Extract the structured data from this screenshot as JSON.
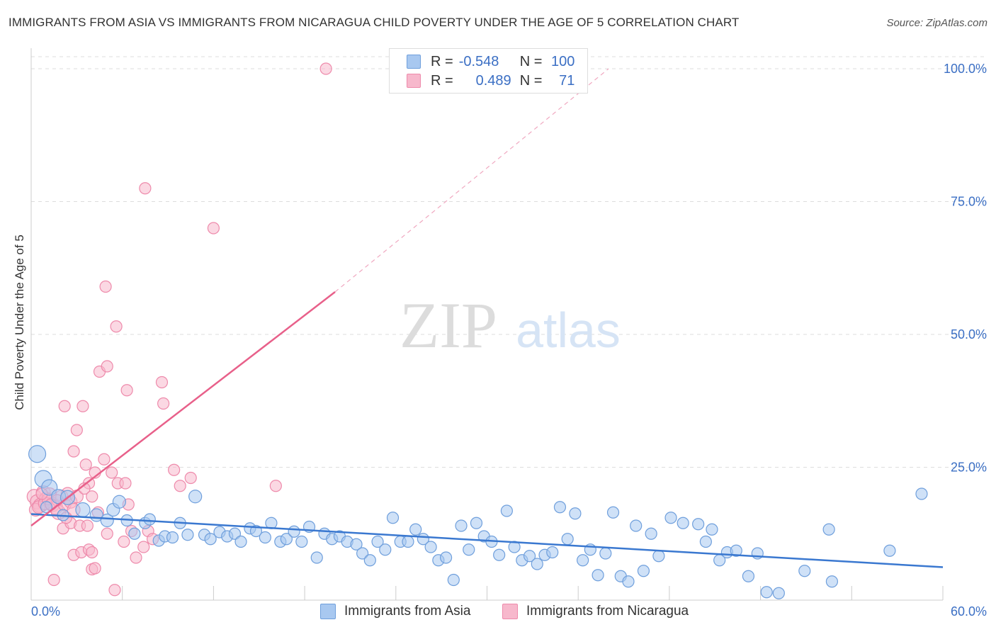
{
  "title": "IMMIGRANTS FROM ASIA VS IMMIGRANTS FROM NICARAGUA CHILD POVERTY UNDER THE AGE OF 5 CORRELATION CHART",
  "source": "Source: ZipAtlas.com",
  "watermark": {
    "zip": "ZIP",
    "atlas": "atlas"
  },
  "legend": {
    "asia": {
      "r_label": "R =",
      "r_value": "-0.548",
      "n_label": "N =",
      "n_value": "100"
    },
    "nicaragua": {
      "r_label": "R =",
      "r_value": "0.489",
      "n_label": "N =",
      "n_value": "71"
    }
  },
  "bottom_legend": {
    "asia": "Immigrants from Asia",
    "nicaragua": "Immigrants from Nicaragua"
  },
  "colors": {
    "asia_fill": "#a8c8f0",
    "asia_stroke": "#6f9fdc",
    "asia_line": "#3a78d0",
    "nic_fill": "#f7b8cc",
    "nic_stroke": "#ee8aab",
    "nic_line": "#e8608a",
    "axis_text": "#3b6fc4",
    "grid": "#dddddd"
  },
  "chart_data": {
    "type": "scatter",
    "title": "IMMIGRANTS FROM ASIA VS IMMIGRANTS FROM NICARAGUA CHILD POVERTY UNDER THE AGE OF 5 CORRELATION CHART",
    "xlabel": "",
    "ylabel": "Child Poverty Under the Age of 5",
    "xlim": [
      0,
      60
    ],
    "ylim": [
      0,
      100
    ],
    "x_tick_labels": [
      "0.0%",
      "60.0%"
    ],
    "y_tick_labels": [
      "100.0%",
      "75.0%",
      "50.0%",
      "25.0%"
    ],
    "y_ticks": [
      100,
      75,
      50,
      25
    ],
    "grid": true,
    "series": [
      {
        "name": "Immigrants from Asia",
        "R": -0.548,
        "N": 100,
        "trend": {
          "x": [
            0,
            60
          ],
          "y": [
            16.2,
            6.2
          ]
        },
        "points": [
          [
            0.4,
            27.5,
            12
          ],
          [
            0.8,
            22.8,
            12
          ],
          [
            1.2,
            21.2,
            11
          ],
          [
            1.8,
            19.5,
            10
          ],
          [
            2.4,
            19.3,
            10
          ],
          [
            3.4,
            17.0,
            10
          ],
          [
            4.3,
            16.0,
            9
          ],
          [
            5.0,
            15.0,
            9
          ],
          [
            5.4,
            17.0,
            9
          ],
          [
            5.8,
            18.5,
            9
          ],
          [
            6.3,
            15.0,
            8
          ],
          [
            6.8,
            12.5,
            8
          ],
          [
            7.5,
            14.5,
            8
          ],
          [
            7.8,
            15.2,
            8
          ],
          [
            8.4,
            11.2,
            8
          ],
          [
            8.8,
            12.0,
            8
          ],
          [
            9.3,
            11.8,
            8
          ],
          [
            9.8,
            14.5,
            8
          ],
          [
            10.3,
            12.3,
            8
          ],
          [
            10.8,
            19.5,
            9
          ],
          [
            11.4,
            12.3,
            8
          ],
          [
            11.8,
            11.5,
            8
          ],
          [
            12.4,
            12.8,
            8
          ],
          [
            12.9,
            12.0,
            8
          ],
          [
            13.4,
            12.5,
            8
          ],
          [
            13.8,
            11.0,
            8
          ],
          [
            14.4,
            13.5,
            8
          ],
          [
            14.8,
            13.0,
            8
          ],
          [
            15.4,
            11.8,
            8
          ],
          [
            15.8,
            14.5,
            8
          ],
          [
            16.4,
            11.0,
            8
          ],
          [
            16.8,
            11.5,
            8
          ],
          [
            17.3,
            12.9,
            8
          ],
          [
            17.8,
            11.0,
            8
          ],
          [
            18.3,
            13.8,
            8
          ],
          [
            18.8,
            8.0,
            8
          ],
          [
            19.3,
            12.5,
            8
          ],
          [
            19.8,
            11.5,
            8
          ],
          [
            20.3,
            12.0,
            8
          ],
          [
            20.8,
            11.0,
            8
          ],
          [
            21.4,
            10.5,
            8
          ],
          [
            21.8,
            8.8,
            8
          ],
          [
            22.3,
            7.5,
            8
          ],
          [
            22.8,
            11.0,
            8
          ],
          [
            23.3,
            9.5,
            8
          ],
          [
            23.8,
            15.5,
            8
          ],
          [
            24.3,
            11.0,
            8
          ],
          [
            24.8,
            11.0,
            8
          ],
          [
            25.3,
            13.3,
            8
          ],
          [
            25.8,
            11.5,
            8
          ],
          [
            26.3,
            10.0,
            8
          ],
          [
            26.8,
            7.5,
            8
          ],
          [
            27.3,
            8.0,
            8
          ],
          [
            27.8,
            3.8,
            8
          ],
          [
            28.3,
            14.0,
            8
          ],
          [
            28.8,
            9.5,
            8
          ],
          [
            29.3,
            14.5,
            8
          ],
          [
            29.8,
            12.0,
            8
          ],
          [
            30.3,
            11.0,
            8
          ],
          [
            30.8,
            8.5,
            8
          ],
          [
            31.3,
            16.8,
            8
          ],
          [
            31.8,
            10.0,
            8
          ],
          [
            32.3,
            7.5,
            8
          ],
          [
            32.8,
            8.3,
            8
          ],
          [
            33.3,
            6.8,
            8
          ],
          [
            33.8,
            8.5,
            8
          ],
          [
            34.3,
            9.0,
            8
          ],
          [
            34.8,
            17.5,
            8
          ],
          [
            35.3,
            11.5,
            8
          ],
          [
            35.8,
            16.3,
            8
          ],
          [
            36.3,
            7.5,
            8
          ],
          [
            36.8,
            9.5,
            8
          ],
          [
            37.3,
            4.7,
            8
          ],
          [
            37.8,
            8.8,
            8
          ],
          [
            38.3,
            16.5,
            8
          ],
          [
            38.8,
            4.5,
            8
          ],
          [
            39.3,
            3.5,
            8
          ],
          [
            39.8,
            14.0,
            8
          ],
          [
            40.3,
            5.5,
            8
          ],
          [
            40.8,
            12.5,
            8
          ],
          [
            41.3,
            8.3,
            8
          ],
          [
            42.1,
            15.5,
            8
          ],
          [
            42.9,
            14.5,
            8
          ],
          [
            43.9,
            14.3,
            8
          ],
          [
            44.4,
            11.0,
            8
          ],
          [
            44.8,
            13.3,
            8
          ],
          [
            45.3,
            7.5,
            8
          ],
          [
            45.8,
            9.0,
            8
          ],
          [
            46.4,
            9.3,
            8
          ],
          [
            47.2,
            4.5,
            8
          ],
          [
            47.8,
            8.8,
            8
          ],
          [
            48.4,
            1.5,
            8
          ],
          [
            49.2,
            1.3,
            8
          ],
          [
            50.9,
            5.5,
            8
          ],
          [
            52.5,
            13.3,
            8
          ],
          [
            52.7,
            3.5,
            8
          ],
          [
            56.5,
            9.3,
            8
          ],
          [
            58.6,
            20.0,
            8
          ],
          [
            1.0,
            17.5,
            8
          ],
          [
            2.1,
            16.0,
            8
          ]
        ]
      },
      {
        "name": "Immigrants from Nicaragua",
        "R": 0.489,
        "N": 71,
        "trend": {
          "x": [
            0,
            20
          ],
          "y": [
            14.0,
            58.0
          ]
        },
        "trend_extension": {
          "x": [
            20,
            38
          ],
          "y": [
            58.0,
            100.0
          ]
        },
        "points": [
          [
            0.2,
            19.5,
            10
          ],
          [
            0.4,
            18.5,
            10
          ],
          [
            0.6,
            17.8,
            10
          ],
          [
            0.8,
            20.2,
            10
          ],
          [
            1.0,
            19.0,
            10
          ],
          [
            1.2,
            19.8,
            10
          ],
          [
            1.4,
            18.0,
            10
          ],
          [
            1.6,
            17.5,
            10
          ],
          [
            1.8,
            16.5,
            10
          ],
          [
            2.0,
            19.5,
            9
          ],
          [
            2.2,
            18.0,
            9
          ],
          [
            0.3,
            17.0,
            9
          ],
          [
            0.5,
            17.5,
            9
          ],
          [
            0.9,
            18.2,
            9
          ],
          [
            2.4,
            20.0,
            9
          ],
          [
            2.6,
            18.5,
            9
          ],
          [
            2.8,
            17.0,
            9
          ],
          [
            3.0,
            19.5,
            9
          ],
          [
            1.5,
            3.8,
            8
          ],
          [
            2.2,
            36.5,
            8
          ],
          [
            2.8,
            28.0,
            8
          ],
          [
            3.0,
            32.0,
            8
          ],
          [
            3.4,
            36.5,
            8
          ],
          [
            3.6,
            25.5,
            8
          ],
          [
            3.8,
            22.0,
            8
          ],
          [
            4.2,
            24.0,
            8
          ],
          [
            4.5,
            43.0,
            8
          ],
          [
            5.0,
            44.0,
            8
          ],
          [
            4.9,
            59.0,
            8
          ],
          [
            5.6,
            51.5,
            8
          ],
          [
            6.3,
            39.5,
            8
          ],
          [
            7.5,
            77.5,
            8
          ],
          [
            8.6,
            41.0,
            8
          ],
          [
            8.7,
            37.0,
            8
          ],
          [
            9.4,
            24.5,
            8
          ],
          [
            10.5,
            23.0,
            8
          ],
          [
            12.0,
            70.0,
            8
          ],
          [
            16.1,
            21.5,
            8
          ],
          [
            19.4,
            100.0,
            8
          ],
          [
            4.8,
            26.5,
            8
          ],
          [
            5.3,
            24.0,
            8
          ],
          [
            5.7,
            22.0,
            8
          ],
          [
            6.2,
            22.0,
            8
          ],
          [
            6.4,
            18.0,
            8
          ],
          [
            2.1,
            13.5,
            8
          ],
          [
            2.6,
            14.5,
            8
          ],
          [
            3.2,
            14.0,
            8
          ],
          [
            3.7,
            14.0,
            8
          ],
          [
            4.4,
            16.5,
            8
          ],
          [
            5.0,
            12.5,
            8
          ],
          [
            5.5,
            1.9,
            8
          ],
          [
            6.1,
            11.0,
            8
          ],
          [
            6.6,
            13.0,
            8
          ],
          [
            6.9,
            8.0,
            8
          ],
          [
            7.4,
            10.0,
            8
          ],
          [
            7.7,
            13.0,
            8
          ],
          [
            8.0,
            11.5,
            8
          ],
          [
            2.8,
            8.5,
            8
          ],
          [
            3.3,
            9.0,
            8
          ],
          [
            3.8,
            9.5,
            8
          ],
          [
            4.0,
            9.0,
            8
          ],
          [
            4.0,
            5.8,
            8
          ],
          [
            4.2,
            6.0,
            8
          ],
          [
            2.3,
            15.5,
            8
          ],
          [
            1.1,
            19.0,
            8
          ],
          [
            1.7,
            18.8,
            8
          ],
          [
            3.5,
            21.0,
            8
          ],
          [
            4.0,
            19.5,
            8
          ],
          [
            9.8,
            21.5,
            8
          ],
          [
            0.7,
            20.0,
            8
          ],
          [
            1.3,
            18.0,
            8
          ]
        ]
      }
    ]
  }
}
